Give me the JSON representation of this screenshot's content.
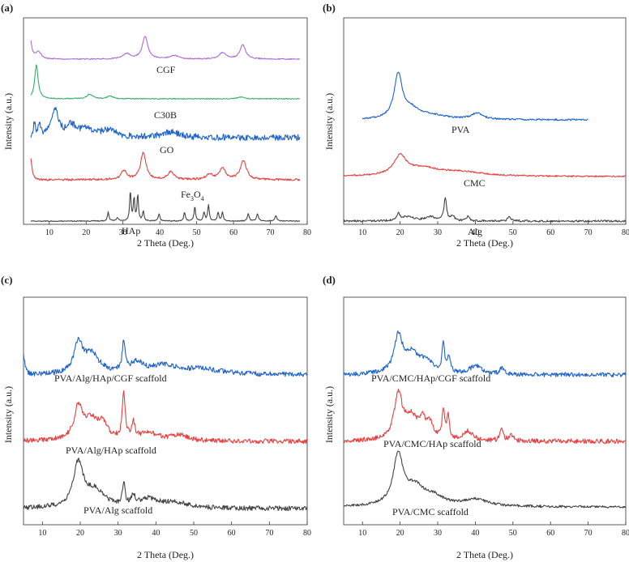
{
  "chart_data": [
    {
      "type": "line",
      "panel_label": "(a)",
      "title": "",
      "xlabel": "2 Theta (Deg.)",
      "ylabel": "Intensity (a.u.)",
      "xlim": [
        3,
        80
      ],
      "xticks": [
        10,
        20,
        30,
        40,
        50,
        60,
        70,
        80
      ],
      "grid": false,
      "series": [
        {
          "name": "CGF",
          "color": "#b06ad6",
          "x_range": [
            5,
            78
          ],
          "noise": 0.06,
          "start_spike": 2.0,
          "peaks": [
            {
              "x": 7,
              "h": 0.9,
              "w": 0.9
            },
            {
              "x": 31,
              "h": 0.6,
              "w": 1.2
            },
            {
              "x": 36,
              "h": 2.5,
              "w": 0.9
            },
            {
              "x": 44,
              "h": 0.4,
              "w": 1.3
            },
            {
              "x": 57,
              "h": 0.7,
              "w": 1.1
            },
            {
              "x": 62.5,
              "h": 1.6,
              "w": 0.9
            }
          ]
        },
        {
          "name": "C30B",
          "color": "#33b06a",
          "x_range": [
            5,
            78
          ],
          "noise": 0.05,
          "start_spike": 0,
          "peaks": [
            {
              "x": 6.5,
              "h": 3.8,
              "w": 0.55
            },
            {
              "x": 21,
              "h": 0.5,
              "w": 1.0
            },
            {
              "x": 26.5,
              "h": 0.3,
              "w": 0.9
            },
            {
              "x": 62,
              "h": 0.2,
              "w": 1.0
            }
          ]
        },
        {
          "name": "GO",
          "color": "#1f63cc",
          "x_range": [
            5,
            78
          ],
          "noise": 0.35,
          "start_spike": 0,
          "peaks": [
            {
              "x": 6,
              "h": 1.6,
              "w": 0.3
            },
            {
              "x": 7.3,
              "h": 1.4,
              "w": 0.3
            },
            {
              "x": 11.5,
              "h": 3.0,
              "w": 1.3
            },
            {
              "x": 16,
              "h": 1.2,
              "w": 1.5
            },
            {
              "x": 20,
              "h": 0.9,
              "w": 2.0
            },
            {
              "x": 26,
              "h": 0.8,
              "w": 2.5
            },
            {
              "x": 43,
              "h": 0.6,
              "w": 3.0
            }
          ]
        },
        {
          "name": "Fe3O4",
          "color": "#e84040",
          "x_range": [
            5,
            78
          ],
          "noise": 0.12,
          "start_spike": 2.5,
          "peaks": [
            {
              "x": 30.2,
              "h": 1.0,
              "w": 0.9
            },
            {
              "x": 35.5,
              "h": 3.0,
              "w": 0.9
            },
            {
              "x": 43,
              "h": 0.9,
              "w": 1.0
            },
            {
              "x": 53.5,
              "h": 0.6,
              "w": 1.0
            },
            {
              "x": 57,
              "h": 1.3,
              "w": 1.0
            },
            {
              "x": 62.7,
              "h": 2.1,
              "w": 1.0
            }
          ]
        },
        {
          "name": "HAp",
          "color": "#444444",
          "x_range": [
            5,
            78
          ],
          "noise": 0.05,
          "start_spike": 0,
          "peaks": [
            {
              "x": 26,
              "h": 1.0,
              "w": 0.25
            },
            {
              "x": 28.5,
              "h": 0.4,
              "w": 0.25
            },
            {
              "x": 32,
              "h": 3.4,
              "w": 0.22
            },
            {
              "x": 33,
              "h": 2.6,
              "w": 0.22
            },
            {
              "x": 34,
              "h": 3.0,
              "w": 0.22
            },
            {
              "x": 35.5,
              "h": 1.1,
              "w": 0.25
            },
            {
              "x": 39.8,
              "h": 0.8,
              "w": 0.25
            },
            {
              "x": 46.7,
              "h": 1.0,
              "w": 0.25
            },
            {
              "x": 49.5,
              "h": 1.6,
              "w": 0.25
            },
            {
              "x": 52,
              "h": 1.0,
              "w": 0.25
            },
            {
              "x": 53.2,
              "h": 1.8,
              "w": 0.25
            },
            {
              "x": 55.8,
              "h": 1.0,
              "w": 0.25
            },
            {
              "x": 57,
              "h": 1.0,
              "w": 0.25
            },
            {
              "x": 64,
              "h": 0.8,
              "w": 0.3
            },
            {
              "x": 66.5,
              "h": 0.8,
              "w": 0.3
            },
            {
              "x": 71.5,
              "h": 0.6,
              "w": 0.3
            }
          ]
        }
      ],
      "labels": [
        "CGF",
        "C30B",
        "GO",
        "Fe",
        "3",
        "O",
        "4",
        "HAp"
      ]
    },
    {
      "type": "line",
      "panel_label": "(b)",
      "title": "",
      "xlabel": "2 Theta (Deg.)",
      "ylabel": "Intensity (a.u.)",
      "xlim": [
        5,
        80
      ],
      "xticks": [
        10,
        20,
        30,
        40,
        50,
        60,
        70,
        80
      ],
      "grid": false,
      "series": [
        {
          "name": "PVA",
          "color": "#1f63cc",
          "x_range": [
            10,
            70
          ],
          "noise": 0.08,
          "start_spike": 0,
          "peaks": [
            {
              "x": 19.5,
              "h": 4.2,
              "w": 1.3
            },
            {
              "x": 23,
              "h": 0.8,
              "w": 2.5
            },
            {
              "x": 28,
              "h": 0.4,
              "w": 5.0
            },
            {
              "x": 40.5,
              "h": 0.6,
              "w": 1.8
            }
          ]
        },
        {
          "name": "CMC",
          "color": "#e84040",
          "x_range": [
            5,
            80
          ],
          "noise": 0.07,
          "start_spike": 0,
          "peaks": [
            {
              "x": 20,
              "h": 1.8,
              "w": 2.0
            },
            {
              "x": 26,
              "h": 0.7,
              "w": 5.0
            },
            {
              "x": 36,
              "h": 0.4,
              "w": 7.0
            }
          ]
        },
        {
          "name": "Alg",
          "color": "#444444",
          "x_range": [
            5,
            80
          ],
          "noise": 0.09,
          "start_spike": 0,
          "peaks": [
            {
              "x": 19.5,
              "h": 0.6,
              "w": 0.5
            },
            {
              "x": 22,
              "h": 0.4,
              "w": 2.0
            },
            {
              "x": 28,
              "h": 0.4,
              "w": 1.5
            },
            {
              "x": 32,
              "h": 2.2,
              "w": 0.4
            },
            {
              "x": 34,
              "h": 0.5,
              "w": 0.5
            },
            {
              "x": 38,
              "h": 0.4,
              "w": 0.5
            },
            {
              "x": 49,
              "h": 0.4,
              "w": 0.5
            }
          ]
        }
      ],
      "labels": [
        "PVA",
        "CMC",
        "Alg"
      ]
    },
    {
      "type": "line",
      "panel_label": "(c)",
      "title": "",
      "xlabel": "2 Theta (Deg.)",
      "ylabel": "Intensity (a.u.)",
      "xlim": [
        5,
        80
      ],
      "xticks": [
        10,
        20,
        30,
        40,
        50,
        60,
        70,
        80
      ],
      "grid": false,
      "series": [
        {
          "name": "PVA/Alg/HAp/CGF scaffold",
          "color": "#1f63cc",
          "x_range": [
            5,
            80
          ],
          "noise": 0.18,
          "start_spike": 1.6,
          "peaks": [
            {
              "x": 19.5,
              "h": 2.2,
              "w": 1.3
            },
            {
              "x": 23,
              "h": 1.4,
              "w": 2.5
            },
            {
              "x": 31.5,
              "h": 2.2,
              "w": 0.45
            },
            {
              "x": 35,
              "h": 0.8,
              "w": 2.0
            },
            {
              "x": 42,
              "h": 0.6,
              "w": 4.0
            },
            {
              "x": 52,
              "h": 0.4,
              "w": 6.0
            }
          ]
        },
        {
          "name": "PVA/Alg/HAp scaffold",
          "color": "#e84040",
          "x_range": [
            5,
            80
          ],
          "noise": 0.17,
          "start_spike": 0,
          "peaks": [
            {
              "x": 19.5,
              "h": 2.3,
              "w": 1.3
            },
            {
              "x": 23,
              "h": 1.4,
              "w": 2.5
            },
            {
              "x": 26,
              "h": 0.9,
              "w": 1.5
            },
            {
              "x": 31.5,
              "h": 3.4,
              "w": 0.45
            },
            {
              "x": 34,
              "h": 1.2,
              "w": 0.5
            },
            {
              "x": 38,
              "h": 0.6,
              "w": 2.5
            },
            {
              "x": 46,
              "h": 0.4,
              "w": 3.0
            }
          ]
        },
        {
          "name": "PVA/Alg scaffold",
          "color": "#444444",
          "x_range": [
            5,
            80
          ],
          "noise": 0.17,
          "start_spike": 0,
          "peaks": [
            {
              "x": 19.5,
              "h": 3.2,
              "w": 1.6
            },
            {
              "x": 24,
              "h": 1.2,
              "w": 3.0
            },
            {
              "x": 31.5,
              "h": 1.6,
              "w": 0.4
            },
            {
              "x": 34,
              "h": 0.8,
              "w": 0.5
            },
            {
              "x": 38,
              "h": 0.6,
              "w": 3.0
            },
            {
              "x": 45,
              "h": 0.4,
              "w": 4.0
            }
          ]
        }
      ],
      "labels": [
        "PVA/Alg/HAp/CGF scaffold",
        "PVA/Alg/HAp scaffold",
        "PVA/Alg scaffold"
      ]
    },
    {
      "type": "line",
      "panel_label": "(d)",
      "title": "",
      "xlabel": "2 Theta (Deg.)",
      "ylabel": "Intensity (a.u.)",
      "xlim": [
        5,
        80
      ],
      "xticks": [
        10,
        20,
        30,
        40,
        50,
        60,
        70,
        80
      ],
      "grid": false,
      "series": [
        {
          "name": "PVA/CMC/HAp/CGF scaffold",
          "color": "#1f63cc",
          "x_range": [
            5,
            80
          ],
          "noise": 0.16,
          "start_spike": 0,
          "peaks": [
            {
              "x": 19.5,
              "h": 2.6,
              "w": 1.3
            },
            {
              "x": 23,
              "h": 1.4,
              "w": 2.5
            },
            {
              "x": 27,
              "h": 0.8,
              "w": 2.0
            },
            {
              "x": 31.5,
              "h": 2.1,
              "w": 0.4
            },
            {
              "x": 33,
              "h": 1.2,
              "w": 0.4
            },
            {
              "x": 40,
              "h": 0.6,
              "w": 2.0
            },
            {
              "x": 47,
              "h": 0.5,
              "w": 0.6
            }
          ]
        },
        {
          "name": "PVA/CMC/HAp scaffold",
          "color": "#e84040",
          "x_range": [
            5,
            80
          ],
          "noise": 0.17,
          "start_spike": 0,
          "peaks": [
            {
              "x": 19.5,
              "h": 3.2,
              "w": 1.3
            },
            {
              "x": 23,
              "h": 1.6,
              "w": 2.2
            },
            {
              "x": 26,
              "h": 1.2,
              "w": 1.0
            },
            {
              "x": 28,
              "h": 1.0,
              "w": 1.0
            },
            {
              "x": 31.5,
              "h": 2.1,
              "w": 0.4
            },
            {
              "x": 32.8,
              "h": 1.6,
              "w": 0.4
            },
            {
              "x": 38,
              "h": 0.7,
              "w": 1.5
            },
            {
              "x": 47,
              "h": 0.9,
              "w": 0.5
            },
            {
              "x": 49.5,
              "h": 0.5,
              "w": 0.6
            }
          ]
        },
        {
          "name": "PVA/CMC scaffold",
          "color": "#444444",
          "x_range": [
            5,
            80
          ],
          "noise": 0.09,
          "start_spike": 0,
          "peaks": [
            {
              "x": 19.5,
              "h": 3.6,
              "w": 1.6
            },
            {
              "x": 24,
              "h": 1.3,
              "w": 3.0
            },
            {
              "x": 29,
              "h": 0.6,
              "w": 3.0
            },
            {
              "x": 40,
              "h": 0.5,
              "w": 4.0
            }
          ]
        }
      ],
      "labels": [
        "PVA/CMC/HAp/CGF scaffold",
        "PVA/CMC/HAp scaffold",
        "PVA/CMC scaffold"
      ]
    }
  ]
}
